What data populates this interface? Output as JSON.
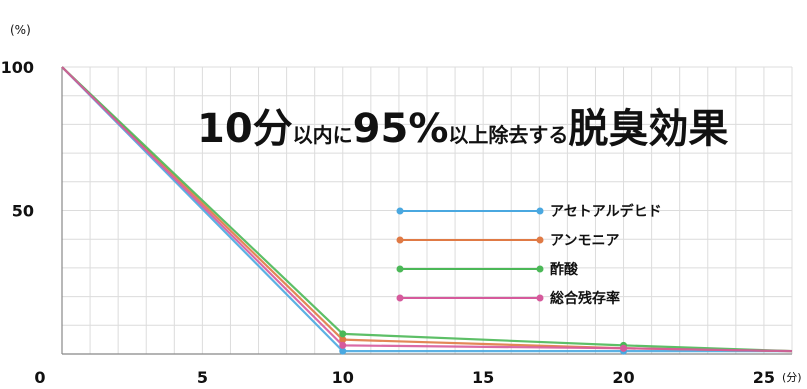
{
  "chart_data": {
    "type": "line",
    "headline": {
      "part1": "10分",
      "part2": "以内に",
      "part3": "95%",
      "part4": "以上除去する",
      "part5": "脱臭効果"
    },
    "y_unit": "(%)",
    "x_unit": "(分)",
    "xlim": [
      0,
      26
    ],
    "ylim": [
      0,
      100
    ],
    "x_ticks": [
      0,
      5,
      10,
      15,
      20,
      25
    ],
    "y_ticks": [
      50,
      100
    ],
    "grid": true,
    "legend_position": "center-right",
    "x": [
      0,
      10,
      20,
      26
    ],
    "series": [
      {
        "name": "アセトアルデヒド",
        "color": "#4aa8e0",
        "values": [
          100,
          1,
          1,
          1
        ]
      },
      {
        "name": "アンモニア",
        "color": "#e07a45",
        "values": [
          100,
          5,
          2,
          1
        ]
      },
      {
        "name": "酢酸",
        "color": "#4bb857",
        "values": [
          100,
          7,
          3,
          1
        ]
      },
      {
        "name": "総合残存率",
        "color": "#d65a9c",
        "values": [
          100,
          3,
          2,
          1
        ]
      }
    ]
  }
}
